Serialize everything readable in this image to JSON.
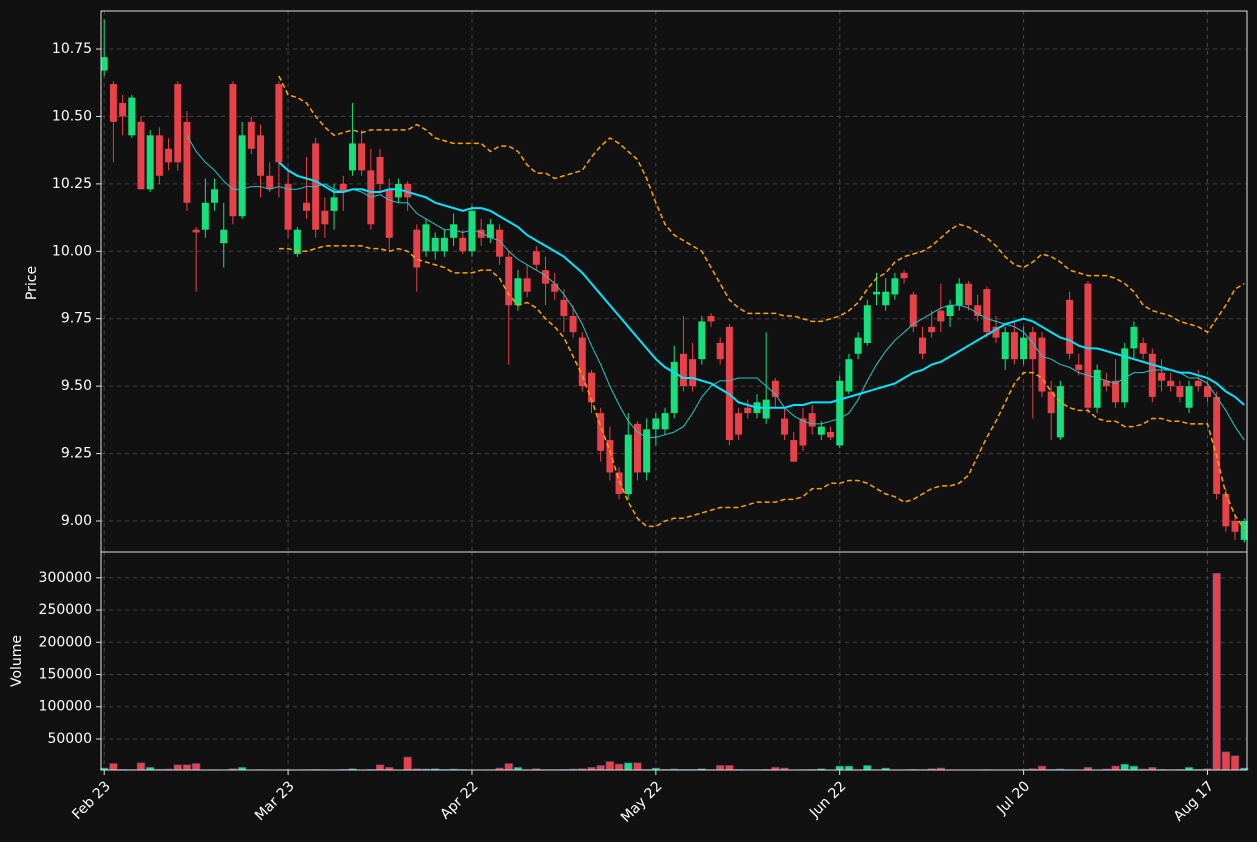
{
  "chart_data": {
    "type": "candlestick",
    "ylabel": "Price",
    "up_color": "#15e07c",
    "down_color": "#e8414a",
    "grid": true,
    "xlim": [
      -0.35,
      124.3
    ],
    "xticks": [
      {
        "value": 0,
        "label": "Feb 23"
      },
      {
        "value": 20,
        "label": "Mar 23"
      },
      {
        "value": 40,
        "label": "Apr 22"
      },
      {
        "value": 60,
        "label": "May 22"
      },
      {
        "value": 80,
        "label": "Jun 22"
      },
      {
        "value": 100,
        "label": "Jul 20"
      },
      {
        "value": 120,
        "label": "Aug 17"
      }
    ],
    "ylim": [
      8.885,
      10.891
    ],
    "yticks": [
      {
        "value": 9,
        "label": "9.00"
      },
      9.25,
      {
        "value": 9.5,
        "label": "9.50"
      },
      9.75,
      {
        "value": 10,
        "label": "10.00"
      },
      10.25,
      {
        "value": 10.5,
        "label": "10.50"
      },
      10.75
    ],
    "open": [
      10.67,
      10.62,
      10.55,
      10.43,
      10.48,
      10.23,
      10.43,
      10.38,
      10.62,
      10.48,
      10.08,
      10.08,
      10.18,
      10.03,
      10.62,
      10.13,
      10.48,
      10.43,
      10.28,
      10.62,
      10.25,
      9.99,
      10.18,
      10.4,
      10.15,
      10.15,
      10.25,
      10.3,
      10.4,
      10.3,
      10.35,
      10.23,
      10.2,
      10.25,
      10.08,
      10.0,
      10.0,
      10.0,
      10.05,
      10.05,
      10.0,
      10.08,
      10.05,
      10.08,
      9.98,
      9.8,
      9.9,
      10.0,
      9.93,
      9.88,
      9.82,
      9.76,
      9.68,
      9.55,
      9.4,
      9.3,
      9.18,
      9.1,
      9.36,
      9.18,
      9.34,
      9.34,
      9.4,
      9.62,
      9.6,
      9.6,
      9.76,
      9.66,
      9.72,
      9.4,
      9.42,
      9.4,
      9.38,
      9.52,
      9.38,
      9.3,
      9.38,
      9.4,
      9.32,
      9.33,
      9.28,
      9.48,
      9.62,
      9.66,
      9.84,
      9.8,
      9.84,
      9.92,
      9.84,
      9.68,
      9.72,
      9.78,
      9.76,
      9.8,
      9.88,
      9.8,
      9.86,
      9.72,
      9.6,
      9.7,
      9.6,
      9.7,
      9.68,
      9.48,
      9.31,
      9.82,
      9.58,
      9.88,
      9.42,
      9.52,
      9.52,
      9.44,
      9.64,
      9.66,
      9.62,
      9.55,
      9.52,
      9.5,
      9.42,
      9.52,
      9.5,
      9.46,
      9.1,
      9.0,
      8.93
    ],
    "high": [
      10.86,
      10.63,
      10.58,
      10.58,
      10.5,
      10.45,
      10.46,
      10.42,
      10.63,
      10.52,
      10.09,
      10.27,
      10.27,
      10.18,
      10.63,
      10.48,
      10.5,
      10.47,
      10.33,
      10.63,
      10.3,
      10.09,
      10.35,
      10.42,
      10.2,
      10.25,
      10.28,
      10.55,
      10.45,
      10.38,
      10.38,
      10.27,
      10.27,
      10.26,
      10.1,
      10.12,
      10.07,
      10.08,
      10.14,
      10.08,
      10.17,
      10.12,
      10.12,
      10.1,
      10.0,
      9.93,
      9.95,
      10.02,
      9.98,
      9.92,
      9.86,
      9.8,
      9.7,
      9.56,
      9.42,
      9.35,
      9.2,
      9.4,
      9.37,
      9.38,
      9.4,
      9.42,
      9.65,
      9.76,
      9.66,
      9.76,
      9.77,
      9.68,
      9.73,
      9.42,
      9.45,
      9.47,
      9.7,
      9.53,
      9.42,
      9.33,
      9.42,
      9.43,
      9.37,
      9.35,
      9.54,
      9.62,
      9.7,
      9.82,
      9.92,
      9.9,
      9.92,
      9.93,
      9.85,
      9.72,
      9.78,
      9.88,
      9.82,
      9.9,
      9.89,
      9.84,
      9.87,
      9.76,
      9.72,
      9.74,
      9.72,
      9.72,
      9.7,
      9.52,
      9.52,
      9.85,
      9.62,
      9.89,
      9.58,
      9.55,
      9.6,
      9.66,
      9.74,
      9.68,
      9.64,
      9.6,
      9.55,
      9.52,
      9.52,
      9.56,
      9.52,
      9.48,
      9.12,
      9.02,
      9.01
    ],
    "low": [
      10.65,
      10.33,
      10.43,
      10.42,
      10.23,
      10.22,
      10.25,
      10.3,
      10.3,
      10.15,
      9.85,
      10.05,
      10.15,
      9.94,
      10.1,
      10.12,
      10.36,
      10.2,
      10.22,
      10.2,
      10.05,
      9.98,
      10.12,
      10.05,
      10.05,
      10.08,
      10.15,
      10.28,
      10.28,
      10.08,
      10.22,
      10.0,
      10.18,
      10.15,
      9.85,
      9.98,
      9.97,
      9.98,
      10.02,
      9.99,
      9.98,
      10.02,
      10.03,
      9.95,
      9.58,
      9.78,
      9.83,
      9.93,
      9.8,
      9.82,
      9.7,
      9.68,
      9.48,
      9.4,
      9.22,
      9.15,
      9.08,
      9.08,
      9.15,
      9.15,
      9.28,
      9.32,
      9.38,
      9.48,
      9.48,
      9.58,
      9.72,
      9.58,
      9.28,
      9.3,
      9.38,
      9.38,
      9.36,
      9.42,
      9.3,
      9.22,
      9.26,
      9.32,
      9.3,
      9.3,
      9.27,
      9.47,
      9.6,
      9.65,
      9.8,
      9.78,
      9.82,
      9.88,
      9.7,
      9.6,
      9.68,
      9.7,
      9.72,
      9.78,
      9.78,
      9.74,
      9.68,
      9.66,
      9.56,
      9.58,
      9.58,
      9.38,
      9.46,
      9.3,
      9.3,
      9.6,
      9.54,
      9.4,
      9.4,
      9.48,
      9.42,
      9.42,
      9.6,
      9.6,
      9.44,
      9.48,
      9.48,
      9.44,
      9.4,
      9.48,
      9.44,
      9.08,
      8.96,
      8.93,
      8.92
    ],
    "close": [
      10.72,
      10.48,
      10.5,
      10.57,
      10.23,
      10.43,
      10.28,
      10.33,
      10.33,
      10.18,
      10.07,
      10.18,
      10.23,
      10.08,
      10.13,
      10.43,
      10.38,
      10.28,
      10.23,
      10.33,
      10.08,
      10.08,
      10.15,
      10.08,
      10.1,
      10.2,
      10.22,
      10.4,
      10.3,
      10.1,
      10.25,
      10.05,
      10.25,
      10.2,
      9.94,
      10.1,
      10.05,
      10.05,
      10.1,
      10.0,
      10.15,
      10.05,
      10.1,
      9.98,
      9.8,
      9.9,
      9.85,
      9.95,
      9.88,
      9.85,
      9.76,
      9.7,
      9.5,
      9.44,
      9.26,
      9.18,
      9.1,
      9.32,
      9.18,
      9.34,
      9.38,
      9.4,
      9.59,
      9.5,
      9.5,
      9.74,
      9.74,
      9.6,
      9.3,
      9.32,
      9.4,
      9.44,
      9.45,
      9.46,
      9.32,
      9.22,
      9.28,
      9.35,
      9.35,
      9.31,
      9.52,
      9.6,
      9.68,
      9.8,
      9.85,
      9.85,
      9.9,
      9.9,
      9.72,
      9.62,
      9.7,
      9.74,
      9.8,
      9.88,
      9.8,
      9.76,
      9.7,
      9.68,
      9.7,
      9.6,
      9.68,
      9.6,
      9.48,
      9.4,
      9.5,
      9.62,
      9.56,
      9.42,
      9.56,
      9.5,
      9.44,
      9.64,
      9.72,
      9.62,
      9.46,
      9.52,
      9.5,
      9.46,
      9.5,
      9.5,
      9.46,
      9.1,
      8.98,
      8.96,
      9.0
    ],
    "series": [
      {
        "color": "#26c6c6",
        "width": 1,
        "dashed": false,
        "values": [
          null,
          null,
          null,
          null,
          null,
          null,
          null,
          null,
          null,
          10.43,
          10.37,
          10.33,
          10.3,
          10.26,
          10.23,
          10.23,
          10.24,
          10.24,
          10.23,
          10.24,
          10.23,
          10.23,
          10.24,
          10.24,
          10.25,
          10.23,
          10.22,
          10.23,
          10.22,
          10.2,
          10.21,
          10.19,
          10.18,
          10.18,
          10.14,
          10.12,
          10.1,
          10.08,
          10.08,
          10.07,
          10.08,
          10.07,
          10.05,
          10.04,
          10.0,
          9.97,
          9.95,
          9.93,
          9.91,
          9.88,
          9.84,
          9.79,
          9.73,
          9.65,
          9.58,
          9.5,
          9.43,
          9.37,
          9.33,
          9.31,
          9.31,
          9.32,
          9.33,
          9.35,
          9.4,
          9.46,
          9.5,
          9.52,
          9.52,
          9.53,
          9.53,
          9.53,
          9.5,
          9.47,
          9.42,
          9.39,
          9.37,
          9.36,
          9.36,
          9.37,
          9.38,
          9.4,
          9.45,
          9.52,
          9.58,
          9.63,
          9.67,
          9.7,
          9.73,
          9.75,
          9.77,
          9.79,
          9.8,
          9.8,
          9.79,
          9.77,
          9.75,
          9.74,
          9.73,
          9.72,
          9.7,
          9.66,
          9.61,
          9.6,
          9.58,
          9.57,
          9.55,
          9.54,
          9.53,
          9.52,
          9.51,
          9.53,
          9.55,
          9.55,
          9.56,
          9.56,
          9.56,
          9.55,
          9.53,
          9.53,
          9.51,
          9.46,
          9.41,
          9.35,
          9.3
        ]
      },
      {
        "color": "#00e5ff",
        "width": 2,
        "dashed": false,
        "values": [
          null,
          null,
          null,
          null,
          null,
          null,
          null,
          null,
          null,
          null,
          null,
          null,
          null,
          null,
          null,
          null,
          null,
          null,
          null,
          10.33,
          10.3,
          10.28,
          10.27,
          10.26,
          10.24,
          10.22,
          10.22,
          10.23,
          10.23,
          10.22,
          10.22,
          10.23,
          10.23,
          10.22,
          10.21,
          10.2,
          10.18,
          10.17,
          10.16,
          10.15,
          10.16,
          10.16,
          10.15,
          10.13,
          10.11,
          10.09,
          10.06,
          10.04,
          10.02,
          10.0,
          9.98,
          9.95,
          9.92,
          9.88,
          9.84,
          9.8,
          9.76,
          9.72,
          9.68,
          9.64,
          9.6,
          9.57,
          9.55,
          9.53,
          9.53,
          9.52,
          9.51,
          9.49,
          9.47,
          9.44,
          9.43,
          9.42,
          9.42,
          9.42,
          9.42,
          9.43,
          9.43,
          9.44,
          9.44,
          9.44,
          9.45,
          9.46,
          9.47,
          9.48,
          9.49,
          9.5,
          9.51,
          9.53,
          9.55,
          9.56,
          9.58,
          9.59,
          9.61,
          9.63,
          9.65,
          9.67,
          9.69,
          9.71,
          9.73,
          9.74,
          9.75,
          9.74,
          9.72,
          9.7,
          9.68,
          9.67,
          9.65,
          9.64,
          9.64,
          9.63,
          9.62,
          9.61,
          9.6,
          9.59,
          9.58,
          9.57,
          9.56,
          9.55,
          9.55,
          9.54,
          9.53,
          9.51,
          9.48,
          9.46,
          9.43
        ]
      },
      {
        "color": "#ffa500",
        "width": 1.5,
        "dashed": true,
        "values": [
          null,
          null,
          null,
          null,
          null,
          null,
          null,
          null,
          null,
          null,
          null,
          null,
          null,
          null,
          null,
          null,
          null,
          null,
          null,
          10.65,
          10.58,
          10.57,
          10.55,
          10.5,
          10.46,
          10.43,
          10.44,
          10.45,
          10.44,
          10.45,
          10.45,
          10.45,
          10.45,
          10.45,
          10.47,
          10.45,
          10.42,
          10.41,
          10.4,
          10.4,
          10.4,
          10.4,
          10.37,
          10.39,
          10.39,
          10.37,
          10.32,
          10.29,
          10.29,
          10.27,
          10.28,
          10.29,
          10.3,
          10.35,
          10.39,
          10.42,
          10.4,
          10.37,
          10.34,
          10.27,
          10.18,
          10.1,
          10.06,
          10.04,
          10.02,
          10.0,
          9.94,
          9.88,
          9.82,
          9.79,
          9.77,
          9.77,
          9.77,
          9.77,
          9.76,
          9.76,
          9.75,
          9.74,
          9.74,
          9.75,
          9.76,
          9.78,
          9.81,
          9.86,
          9.9,
          9.92,
          9.96,
          9.98,
          9.99,
          10.0,
          10.02,
          10.05,
          10.08,
          10.1,
          10.09,
          10.07,
          10.05,
          10.02,
          9.98,
          9.95,
          9.94,
          9.96,
          9.99,
          9.98,
          9.96,
          9.93,
          9.92,
          9.91,
          9.91,
          9.91,
          9.9,
          9.88,
          9.85,
          9.8,
          9.78,
          9.77,
          9.76,
          9.74,
          9.73,
          9.72,
          9.7,
          9.75,
          9.8,
          9.86,
          9.88
        ]
      },
      {
        "color": "#ffa500",
        "width": 1.5,
        "dashed": true,
        "values": [
          null,
          null,
          null,
          null,
          null,
          null,
          null,
          null,
          null,
          null,
          null,
          null,
          null,
          null,
          null,
          null,
          null,
          null,
          null,
          10.01,
          10.01,
          10.0,
          10.0,
          10.01,
          10.02,
          10.02,
          10.02,
          10.02,
          10.02,
          10.01,
          10.01,
          10.0,
          10.01,
          10.0,
          9.97,
          9.96,
          9.95,
          9.94,
          9.92,
          9.92,
          9.92,
          9.93,
          9.93,
          9.9,
          9.84,
          9.8,
          9.81,
          9.79,
          9.75,
          9.72,
          9.68,
          9.61,
          9.54,
          9.45,
          9.35,
          9.26,
          9.15,
          9.07,
          9.01,
          8.98,
          8.98,
          9.0,
          9.01,
          9.01,
          9.02,
          9.03,
          9.04,
          9.05,
          9.05,
          9.05,
          9.06,
          9.07,
          9.07,
          9.07,
          9.08,
          9.08,
          9.09,
          9.12,
          9.12,
          9.14,
          9.14,
          9.15,
          9.15,
          9.14,
          9.12,
          9.1,
          9.09,
          9.07,
          9.08,
          9.1,
          9.12,
          9.13,
          9.13,
          9.14,
          9.17,
          9.24,
          9.31,
          9.37,
          9.44,
          9.51,
          9.55,
          9.55,
          9.53,
          9.48,
          9.44,
          9.42,
          9.41,
          9.41,
          9.38,
          9.37,
          9.37,
          9.35,
          9.35,
          9.36,
          9.38,
          9.38,
          9.37,
          9.37,
          9.36,
          9.36,
          9.36,
          9.24,
          9.1,
          9.02,
          8.97
        ]
      }
    ],
    "volume": {
      "ylabel": "Volume",
      "ylim": [
        1900,
        340000
      ],
      "yticks": [
        50000,
        100000,
        150000,
        200000,
        250000,
        300000
      ],
      "values": [
        5000,
        12000,
        3000,
        2500,
        13000,
        6000,
        3000,
        3500,
        10000,
        10000,
        12000,
        2000,
        2500,
        2000,
        4000,
        6000,
        2000,
        2500,
        2000,
        2500,
        2500,
        2000,
        2500,
        3000,
        2500,
        2000,
        3000,
        4000,
        2000,
        3000,
        10000,
        6000,
        2000,
        22000,
        4000,
        3500,
        4000,
        3000,
        3500,
        3000,
        2000,
        2000,
        2500,
        5000,
        12000,
        6000,
        2500,
        4000,
        2500,
        2500,
        3000,
        3500,
        4000,
        6000,
        9000,
        15000,
        11000,
        13000,
        13000,
        3000,
        5000,
        3000,
        3500,
        3000,
        3000,
        4000,
        2500,
        9000,
        9000,
        3000,
        2500,
        2500,
        3000,
        6000,
        5000,
        2000,
        2500,
        3000,
        4000,
        2000,
        8000,
        8000,
        2500,
        9000,
        2500,
        5000,
        2000,
        2500,
        3000,
        2500,
        4000,
        5000,
        2000,
        2000,
        2000,
        2000,
        2500,
        2000,
        2000,
        2000,
        3000,
        4000,
        8000,
        3000,
        3500,
        2500,
        2000,
        6000,
        2000,
        3500,
        8000,
        11000,
        8000,
        3500,
        6000,
        3000,
        2500,
        3000,
        6000,
        3000,
        4000,
        307000,
        30000,
        24000,
        5000
      ]
    }
  }
}
